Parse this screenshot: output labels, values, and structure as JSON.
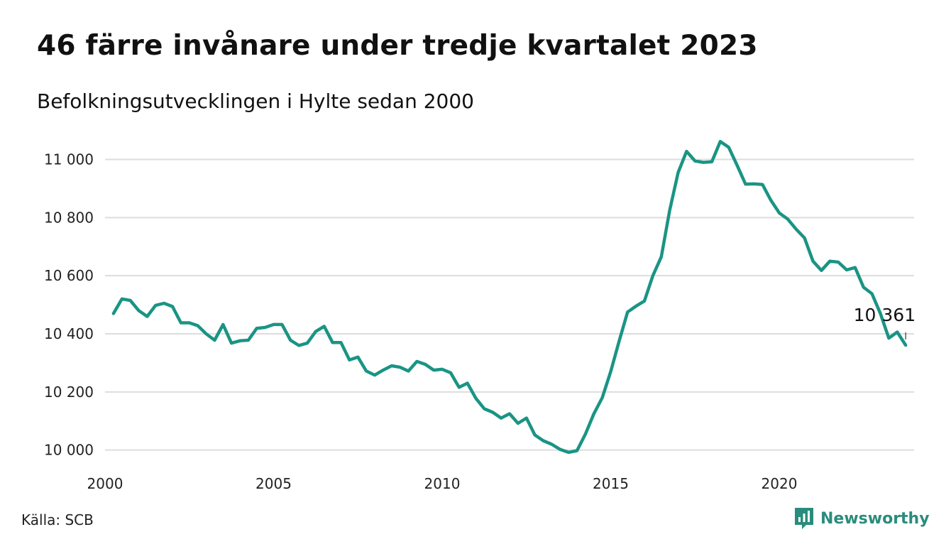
{
  "title": "46 färre invånare under tredje kvartalet 2023",
  "subtitle": "Befolkningsutvecklingen i Hylte sedan 2000",
  "source": "Källa: SCB",
  "brand": {
    "name": "Newsworthy",
    "icon": "newsworthy-logo-icon",
    "color": "#2a8c7c"
  },
  "chart_data": {
    "type": "line",
    "line_color": "#1a9484",
    "grid": true,
    "xlim": [
      2000,
      2024
    ],
    "ylim": [
      9960,
      11060
    ],
    "x_ticks": [
      2000,
      2005,
      2010,
      2015,
      2020
    ],
    "x_tick_labels": [
      "2000",
      "2005",
      "2010",
      "2015",
      "2020"
    ],
    "y_ticks": [
      10000,
      10200,
      10400,
      10600,
      10800,
      11000
    ],
    "y_tick_labels": [
      "10 000",
      "10 200",
      "10 400",
      "10 600",
      "10 800",
      "11 000"
    ],
    "annotation": {
      "label": "10 361",
      "x": 2023.75,
      "y": 10361
    },
    "series": [
      {
        "x": [
          2000.25,
          2000.5,
          2000.75,
          2001,
          2001.25,
          2001.5,
          2001.75,
          2002,
          2002.25,
          2002.5,
          2002.75,
          2003,
          2003.25,
          2003.5,
          2003.75,
          2004,
          2004.25,
          2004.5,
          2004.75,
          2005,
          2005.25,
          2005.5,
          2005.75,
          2006,
          2006.25,
          2006.5,
          2006.75,
          2007,
          2007.25,
          2007.5,
          2007.75,
          2008,
          2008.25,
          2008.5,
          2008.75,
          2009,
          2009.25,
          2009.5,
          2009.75,
          2010,
          2010.25,
          2010.5,
          2010.75,
          2011,
          2011.25,
          2011.5,
          2011.75,
          2012,
          2012.25,
          2012.5,
          2012.75,
          2013,
          2013.25,
          2013.5,
          2013.75,
          2014,
          2014.25,
          2014.5,
          2014.75,
          2015,
          2015.25,
          2015.5,
          2015.75,
          2016,
          2016.25,
          2016.5,
          2016.75,
          2017,
          2017.25,
          2017.5,
          2017.75,
          2018,
          2018.25,
          2018.5,
          2018.75,
          2019,
          2019.25,
          2019.5,
          2019.75,
          2020,
          2020.25,
          2020.5,
          2020.75,
          2021,
          2021.25,
          2021.5,
          2021.75,
          2022,
          2022.25,
          2022.5,
          2022.75,
          2023,
          2023.25,
          2023.5,
          2023.75
        ],
        "values": [
          10470,
          10520,
          10515,
          10480,
          10460,
          10498,
          10505,
          10494,
          10438,
          10438,
          10428,
          10400,
          10378,
          10432,
          10368,
          10376,
          10378,
          10419,
          10422,
          10432,
          10432,
          10378,
          10360,
          10368,
          10408,
          10426,
          10370,
          10370,
          10310,
          10320,
          10272,
          10258,
          10275,
          10290,
          10285,
          10272,
          10305,
          10295,
          10275,
          10278,
          10266,
          10216,
          10230,
          10178,
          10142,
          10130,
          10110,
          10125,
          10092,
          10110,
          10052,
          10032,
          10020,
          10002,
          9992,
          9998,
          10055,
          10125,
          10180,
          10270,
          10375,
          10475,
          10495,
          10513,
          10600,
          10665,
          10825,
          10955,
          11028,
          10995,
          10990,
          10992,
          11062,
          11042,
          10980,
          10915,
          10916,
          10914,
          10860,
          10816,
          10795,
          10760,
          10730,
          10650,
          10618,
          10650,
          10647,
          10620,
          10628,
          10560,
          10538,
          10470,
          10385,
          10406,
          10361
        ]
      }
    ]
  }
}
